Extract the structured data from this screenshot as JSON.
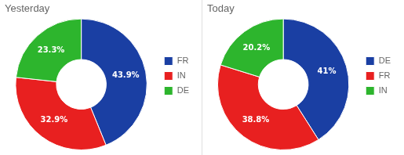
{
  "chart_data": [
    {
      "type": "doughnut",
      "title": "Yesterday",
      "categories": [
        "FR",
        "IN",
        "DE"
      ],
      "values": [
        43.9,
        32.9,
        23.3
      ],
      "colors": [
        "#1a3fa3",
        "#e82020",
        "#2db52d"
      ],
      "data_labels": true,
      "value_labels": [
        "43.9%",
        "32.9%",
        "23.3%"
      ],
      "legend": "right"
    },
    {
      "type": "doughnut",
      "title": "Today",
      "categories": [
        "DE",
        "FR",
        "IN"
      ],
      "values": [
        41.0,
        38.8,
        20.2
      ],
      "colors": [
        "#1a3fa3",
        "#e82020",
        "#2db52d"
      ],
      "data_labels": true,
      "value_labels": [
        "41%",
        "38.8%",
        "20.2%"
      ],
      "legend": "right"
    }
  ]
}
